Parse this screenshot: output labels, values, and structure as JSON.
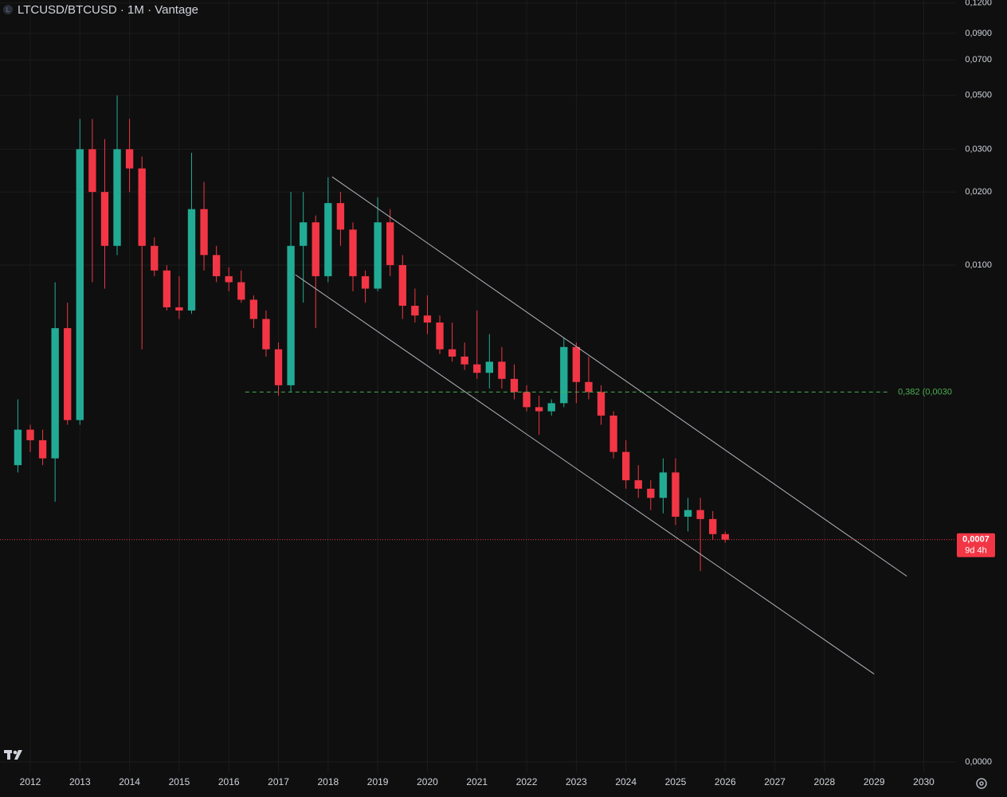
{
  "chart_data": {
    "type": "candlestick",
    "title": "LTCUSD/BTCUSD · 1M · Vantage",
    "log_scale": true,
    "grid": true,
    "up_color": "#22ab94",
    "down_color": "#f23645",
    "xlim": [
      2011.39,
      2030.65
    ],
    "ylim": [
      8.15e-05,
      0.1235
    ],
    "xticks": [
      2012,
      2013,
      2014,
      2015,
      2016,
      2017,
      2018,
      2019,
      2020,
      2021,
      2022,
      2023,
      2024,
      2025,
      2026,
      2027,
      2028,
      2029,
      2030
    ],
    "yticks": [
      {
        "value": 0.12,
        "label": "0,1200"
      },
      {
        "value": 0.09,
        "label": "0,0900"
      },
      {
        "value": 0.07,
        "label": "0,0700"
      },
      {
        "value": 0.05,
        "label": "0,0500"
      },
      {
        "value": 0.03,
        "label": "0,0300"
      },
      {
        "value": 0.02,
        "label": "0,0200"
      },
      {
        "value": 0.01,
        "label": "0,0100"
      },
      {
        "value": 9e-05,
        "label": "0,0000"
      }
    ],
    "x": [
      2011.75,
      2012.0,
      2012.25,
      2012.5,
      2012.75,
      2013.0,
      2013.25,
      2013.5,
      2013.75,
      2014.0,
      2014.25,
      2014.5,
      2014.75,
      2015.0,
      2015.25,
      2015.5,
      2015.75,
      2016.0,
      2016.25,
      2016.5,
      2016.75,
      2017.0,
      2017.25,
      2017.5,
      2017.75,
      2018.0,
      2018.25,
      2018.5,
      2018.75,
      2019.0,
      2019.25,
      2019.5,
      2019.75,
      2020.0,
      2020.25,
      2020.5,
      2020.75,
      2021.0,
      2021.25,
      2021.5,
      2021.75,
      2022.0,
      2022.25,
      2022.5,
      2022.75,
      2023.0,
      2023.25,
      2023.5,
      2023.75,
      2024.0,
      2024.25,
      2024.5,
      2024.75,
      2025.0,
      2025.25,
      2025.5,
      2025.75,
      2026.0
    ],
    "open": [
      0.0015,
      0.0021,
      0.0019,
      0.0016,
      0.0055,
      0.0023,
      0.03,
      0.02,
      0.012,
      0.03,
      0.025,
      0.012,
      0.0095,
      0.0067,
      0.0065,
      0.017,
      0.011,
      0.009,
      0.0085,
      0.0072,
      0.006,
      0.0045,
      0.0032,
      0.012,
      0.015,
      0.009,
      0.018,
      0.014,
      0.009,
      0.008,
      0.015,
      0.01,
      0.0068,
      0.0062,
      0.0058,
      0.0045,
      0.0042,
      0.0039,
      0.0036,
      0.004,
      0.0034,
      0.003,
      0.0026,
      0.0025,
      0.0027,
      0.0046,
      0.0033,
      0.003,
      0.0024,
      0.0017,
      0.0013,
      0.0012,
      0.0011,
      0.0014,
      0.00092,
      0.00098,
      0.0009,
      0.00078
    ],
    "high": [
      0.0028,
      0.0022,
      0.0021,
      0.0085,
      0.007,
      0.04,
      0.04,
      0.033,
      0.05,
      0.04,
      0.028,
      0.013,
      0.01,
      0.009,
      0.029,
      0.022,
      0.012,
      0.0098,
      0.0095,
      0.0075,
      0.0065,
      0.0048,
      0.02,
      0.02,
      0.016,
      0.023,
      0.02,
      0.015,
      0.0095,
      0.019,
      0.017,
      0.011,
      0.008,
      0.0075,
      0.0062,
      0.0058,
      0.0048,
      0.0065,
      0.0052,
      0.0046,
      0.0039,
      0.0032,
      0.0029,
      0.0028,
      0.005,
      0.0048,
      0.0042,
      0.0032,
      0.0025,
      0.0019,
      0.0015,
      0.0013,
      0.0016,
      0.0016,
      0.0011,
      0.0011,
      0.00097,
      0.0008
    ],
    "low": [
      0.0014,
      0.0017,
      0.0015,
      0.00106,
      0.0022,
      0.0022,
      0.0085,
      0.008,
      0.011,
      0.02,
      0.0045,
      0.009,
      0.0065,
      0.006,
      0.0063,
      0.0095,
      0.0085,
      0.0078,
      0.007,
      0.0055,
      0.0042,
      0.0029,
      0.003,
      0.007,
      0.0055,
      0.0085,
      0.012,
      0.0078,
      0.007,
      0.0078,
      0.009,
      0.006,
      0.0058,
      0.0052,
      0.0043,
      0.004,
      0.0037,
      0.0034,
      0.0031,
      0.0031,
      0.0028,
      0.0025,
      0.002,
      0.0024,
      0.0026,
      0.0027,
      0.0028,
      0.0022,
      0.0016,
      0.0012,
      0.0011,
      0.00098,
      0.00095,
      0.00085,
      0.0008,
      0.00055,
      0.00074,
      0.00072
    ],
    "close": [
      0.0021,
      0.0019,
      0.0016,
      0.0055,
      0.0023,
      0.03,
      0.02,
      0.012,
      0.03,
      0.025,
      0.012,
      0.0095,
      0.0067,
      0.0065,
      0.017,
      0.011,
      0.009,
      0.0085,
      0.0072,
      0.006,
      0.0045,
      0.0032,
      0.012,
      0.015,
      0.009,
      0.018,
      0.014,
      0.009,
      0.008,
      0.015,
      0.01,
      0.0068,
      0.0062,
      0.0058,
      0.0045,
      0.0042,
      0.0039,
      0.0036,
      0.004,
      0.0034,
      0.003,
      0.0026,
      0.0025,
      0.0027,
      0.0046,
      0.0033,
      0.003,
      0.0024,
      0.0017,
      0.0013,
      0.0012,
      0.0011,
      0.0014,
      0.00092,
      0.00098,
      0.0009,
      0.00078,
      0.00074
    ],
    "channel": [
      {
        "x": [
          2018.08,
          2029.66
        ],
        "y": [
          0.0231,
          0.000523
        ]
      },
      {
        "x": [
          2017.34,
          2029.0
        ],
        "y": [
          0.00913,
          0.000207
        ]
      }
    ],
    "fib_level": {
      "label": "0,382 (0,0030",
      "value": 0.003,
      "x": [
        2016.33,
        2029.32
      ],
      "color": "#4caf50"
    },
    "last_price": {
      "value": 0.00074,
      "label": "0,0007",
      "countdown": "9d 4h"
    }
  }
}
